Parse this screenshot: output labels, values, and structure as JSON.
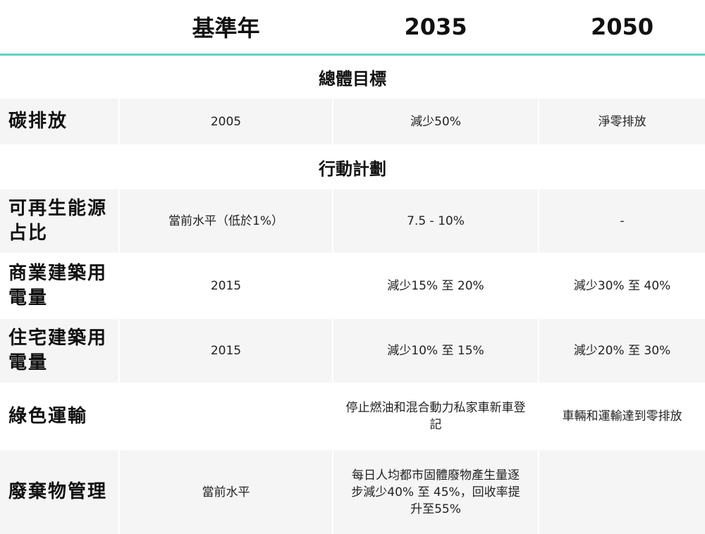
{
  "header": {
    "col0": "",
    "col1": "基準年",
    "col2": "2035",
    "col3": "2050"
  },
  "sections": {
    "overall": "總體目標",
    "action": "行動計劃"
  },
  "rows": [
    {
      "label": "碳排放",
      "base": "2005",
      "y2035": "減少50%",
      "y2050": "淨零排放"
    },
    {
      "label": "可再生能源占比",
      "base": "當前水平（低於1%）",
      "y2035": "7.5 - 10%",
      "y2050": "-"
    },
    {
      "label": "商業建築用電量",
      "base": "2015",
      "y2035": "減少15% 至 20%",
      "y2050": "減少30% 至 40%"
    },
    {
      "label": "住宅建築用電量",
      "base": "2015",
      "y2035": "減少10% 至 15%",
      "y2050": "減少20% 至 30%"
    },
    {
      "label": "綠色運輸",
      "base": "",
      "y2035": "停止燃油和混合動力私家車新車登記",
      "y2050": "車輛和運輸達到零排放"
    },
    {
      "label": "廢棄物管理",
      "base": "當前水平",
      "y2035": "每日人均都市固體廢物產生量逐步減少40% 至 45%，回收率提升至55%",
      "y2050": ""
    }
  ]
}
